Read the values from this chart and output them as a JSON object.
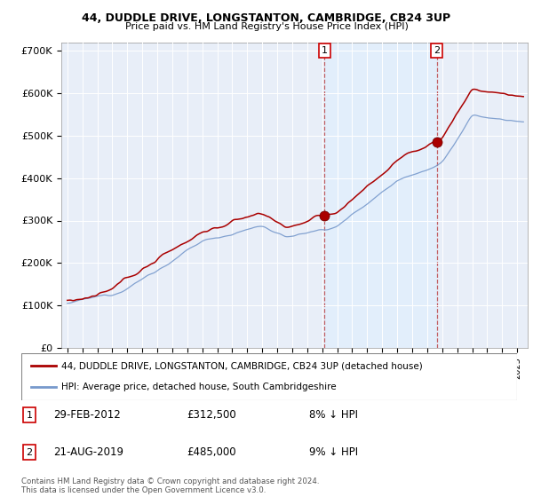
{
  "title1": "44, DUDDLE DRIVE, LONGSTANTON, CAMBRIDGE, CB24 3UP",
  "title2": "Price paid vs. HM Land Registry's House Price Index (HPI)",
  "plot_bg": "#dce8f5",
  "ylim": [
    0,
    720000
  ],
  "yticks": [
    0,
    100000,
    200000,
    300000,
    400000,
    500000,
    600000,
    700000
  ],
  "ytick_labels": [
    "£0",
    "£100K",
    "£200K",
    "£300K",
    "£400K",
    "£500K",
    "£600K",
    "£700K"
  ],
  "sale1_date": 2012.16,
  "sale1_price": 312500,
  "sale2_date": 2019.64,
  "sale2_price": 485000,
  "legend_line1": "44, DUDDLE DRIVE, LONGSTANTON, CAMBRIDGE, CB24 3UP (detached house)",
  "legend_line2": "HPI: Average price, detached house, South Cambridgeshire",
  "ann1_date": "29-FEB-2012",
  "ann1_price": "£312,500",
  "ann1_pct": "8% ↓ HPI",
  "ann2_date": "21-AUG-2019",
  "ann2_price": "£485,000",
  "ann2_pct": "9% ↓ HPI",
  "footer": "Contains HM Land Registry data © Crown copyright and database right 2024.\nThis data is licensed under the Open Government Licence v3.0.",
  "red_color": "#aa0000",
  "blue_color": "#7799cc"
}
